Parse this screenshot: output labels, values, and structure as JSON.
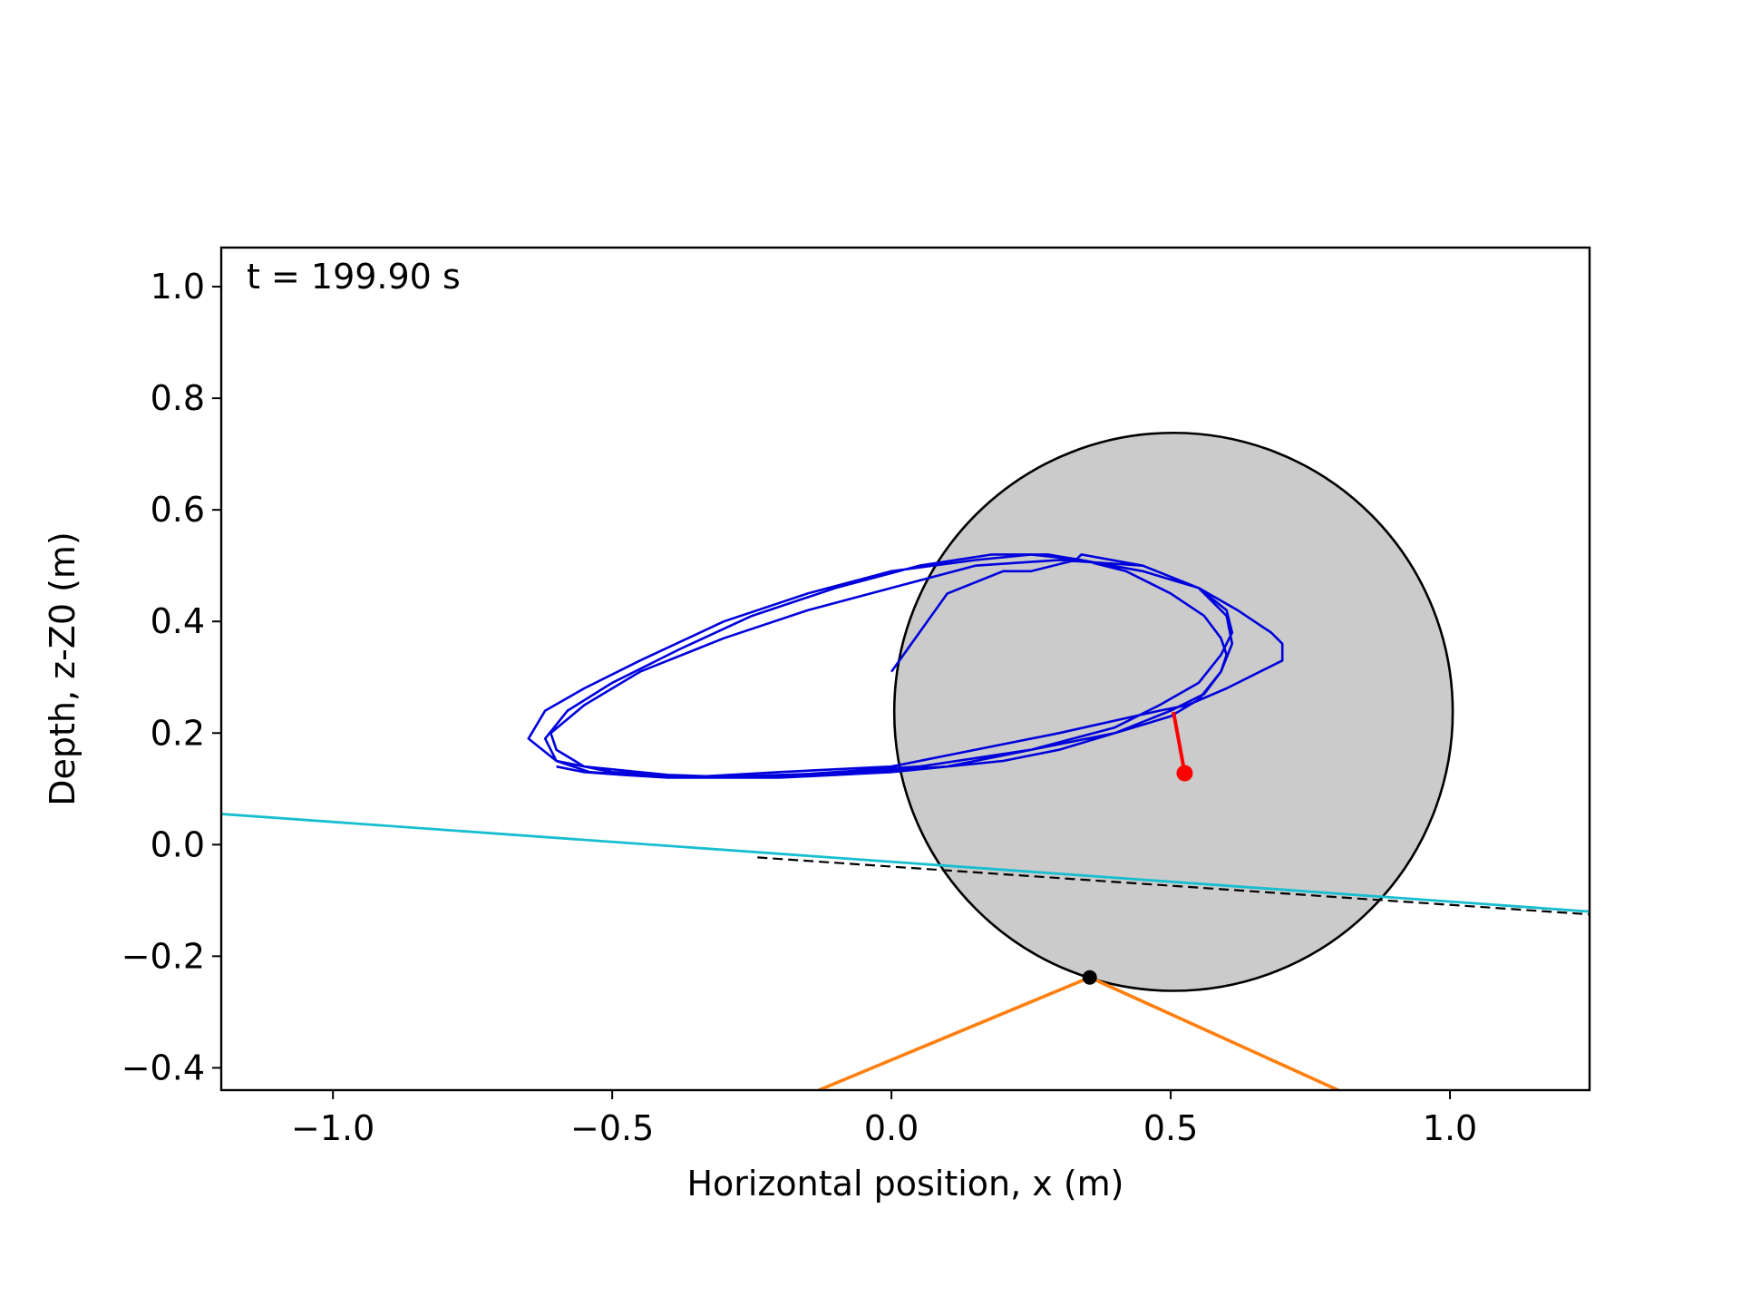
{
  "chart_data": {
    "type": "line",
    "annotation": "t = 199.90 s",
    "xlabel": "Horizontal position, x (m)",
    "ylabel": "Depth, z-Z0 (m)",
    "xlim": [
      -1.2,
      1.25
    ],
    "ylim": [
      -0.44,
      1.07
    ],
    "grid": false,
    "xticks": [
      {
        "value": -1.0,
        "label": "−1.0"
      },
      {
        "value": -0.5,
        "label": "−0.5"
      },
      {
        "value": 0.0,
        "label": "0.0"
      },
      {
        "value": 0.5,
        "label": "0.5"
      },
      {
        "value": 1.0,
        "label": "1.0"
      }
    ],
    "yticks": [
      {
        "value": -0.4,
        "label": "−0.4"
      },
      {
        "value": -0.2,
        "label": "−0.2"
      },
      {
        "value": 0.0,
        "label": "0.0"
      },
      {
        "value": 0.2,
        "label": "0.2"
      },
      {
        "value": 0.4,
        "label": "0.4"
      },
      {
        "value": 0.6,
        "label": "0.6"
      },
      {
        "value": 0.8,
        "label": "0.8"
      },
      {
        "value": 1.0,
        "label": "1.0"
      }
    ],
    "colors": {
      "trajectory": "#0000dd",
      "water_surface": "#17becf",
      "mooring": "#ff7f0e",
      "pendulum": "#ff0000",
      "body_fill": "#cbcbcb",
      "body_edge": "#000000",
      "reference": "#000000"
    },
    "body_circle": {
      "cx": 0.505,
      "cy": 0.238,
      "r": 0.5
    },
    "mooring_lines": [
      {
        "x": [
          -0.13,
          0.355
        ],
        "y": [
          -0.44,
          -0.238
        ]
      },
      {
        "x": [
          0.355,
          0.8
        ],
        "y": [
          -0.238,
          -0.44
        ]
      }
    ],
    "fairlead": {
      "x": 0.355,
      "y": -0.238
    },
    "water_surface": {
      "x": [
        -1.2,
        1.25
      ],
      "y": [
        0.055,
        -0.12
      ]
    },
    "reference_line": {
      "x": [
        -0.24,
        1.25
      ],
      "y": [
        -0.023,
        -0.125
      ]
    },
    "pendulum": {
      "x": [
        0.505,
        0.525
      ],
      "y": [
        0.238,
        0.128
      ]
    },
    "pendulum_mass": {
      "x": 0.525,
      "y": 0.128
    },
    "trajectory": {
      "x": [
        0.0,
        0.1,
        0.2,
        0.25,
        0.33,
        0.34,
        0.45,
        0.55,
        0.62,
        0.68,
        0.7,
        0.7,
        0.66,
        0.6,
        0.53,
        0.48,
        0.3,
        0.1,
        0.0,
        -0.2,
        -0.38,
        -0.54,
        -0.6,
        -0.62,
        -0.58,
        -0.5,
        -0.38,
        -0.25,
        -0.1,
        0.05,
        0.18,
        0.28,
        0.34,
        0.42,
        0.5,
        0.56,
        0.59,
        0.6,
        0.59,
        0.56,
        0.5,
        0.4,
        0.25,
        0.1,
        -0.05,
        -0.2,
        -0.35,
        -0.5,
        -0.6,
        -0.65,
        -0.62,
        -0.55,
        -0.45,
        -0.3,
        -0.15,
        0.0,
        0.15,
        0.25,
        0.34,
        0.45,
        0.55,
        0.6,
        0.61,
        0.59,
        0.55,
        0.48,
        0.4,
        0.25,
        0.05,
        -0.1,
        -0.25,
        -0.4,
        -0.55,
        -0.6,
        -0.61,
        -0.55,
        -0.45,
        -0.3,
        -0.15,
        0.0,
        0.15,
        0.3,
        0.45,
        0.55,
        0.6,
        0.61,
        0.59,
        0.55,
        0.5,
        0.4,
        0.3,
        0.2,
        0.1,
        0.0,
        -0.1,
        -0.2,
        -0.3,
        -0.4,
        -0.48,
        -0.55,
        -0.6
      ],
      "y": [
        0.31,
        0.45,
        0.49,
        0.49,
        0.51,
        0.52,
        0.5,
        0.46,
        0.42,
        0.38,
        0.36,
        0.33,
        0.31,
        0.28,
        0.25,
        0.24,
        0.2,
        0.16,
        0.14,
        0.13,
        0.12,
        0.13,
        0.15,
        0.19,
        0.24,
        0.29,
        0.35,
        0.41,
        0.46,
        0.5,
        0.52,
        0.52,
        0.51,
        0.49,
        0.45,
        0.41,
        0.37,
        0.34,
        0.31,
        0.27,
        0.24,
        0.2,
        0.17,
        0.14,
        0.13,
        0.125,
        0.12,
        0.13,
        0.15,
        0.19,
        0.24,
        0.28,
        0.33,
        0.4,
        0.45,
        0.49,
        0.51,
        0.52,
        0.51,
        0.49,
        0.46,
        0.42,
        0.38,
        0.34,
        0.29,
        0.25,
        0.21,
        0.17,
        0.14,
        0.13,
        0.12,
        0.125,
        0.14,
        0.17,
        0.2,
        0.25,
        0.31,
        0.37,
        0.42,
        0.46,
        0.5,
        0.51,
        0.5,
        0.46,
        0.41,
        0.36,
        0.31,
        0.26,
        0.23,
        0.2,
        0.17,
        0.15,
        0.14,
        0.13,
        0.125,
        0.12,
        0.12,
        0.12,
        0.125,
        0.13,
        0.14
      ]
    }
  }
}
